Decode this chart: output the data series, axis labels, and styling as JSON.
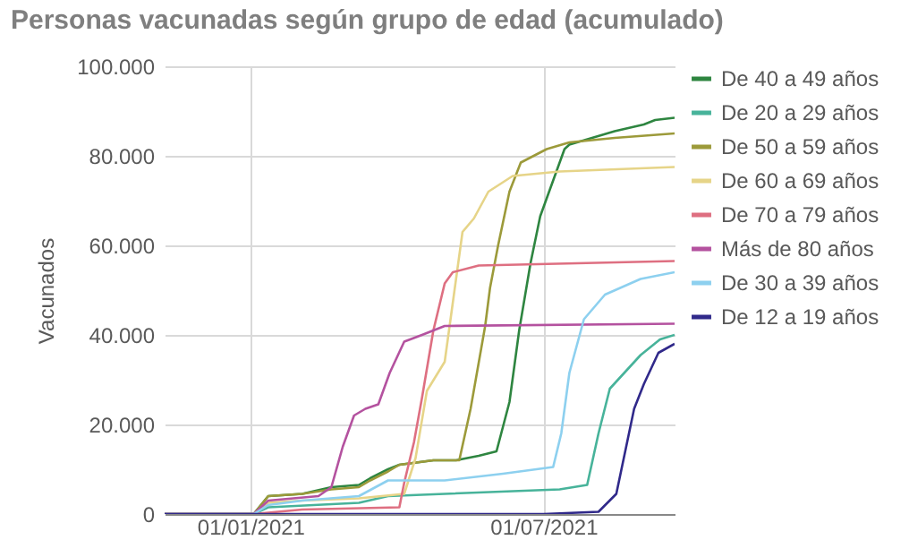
{
  "chart_data": {
    "type": "line",
    "title": "Personas vacunadas según grupo de edad (acumulado)",
    "ylabel": "Vacunados",
    "xlim": [
      "2020-11-09",
      "2021-09-20"
    ],
    "xticks": [
      {
        "value": "2021-01-01",
        "label": "01/01/2021"
      },
      {
        "value": "2021-07-01",
        "label": "01/07/2021"
      }
    ],
    "ylim": [
      0,
      100000
    ],
    "yticks": [
      0,
      {
        "value": 20000,
        "label": "20.000"
      },
      {
        "value": 40000,
        "label": "40.000"
      },
      {
        "value": 60000,
        "label": "60.000"
      },
      {
        "value": 80000,
        "label": "80.000"
      },
      {
        "value": 100000,
        "label": "100.000"
      }
    ],
    "grid": true,
    "legend": "right",
    "series": [
      {
        "name": "De 40 a 49 años",
        "color": "#2e8540",
        "x": [
          "2020-11-09",
          "2021-01-03",
          "2021-01-12",
          "2021-02-02",
          "2021-02-20",
          "2021-03-09",
          "2021-03-16",
          "2021-03-27",
          "2021-04-03",
          "2021-04-24",
          "2021-05-08",
          "2021-05-22",
          "2021-06-02",
          "2021-06-10",
          "2021-06-16",
          "2021-06-23",
          "2021-06-29",
          "2021-07-07",
          "2021-07-14",
          "2021-07-17",
          "2021-07-31",
          "2021-08-14",
          "2021-09-01",
          "2021-09-08",
          "2021-09-20"
        ],
        "values": [
          0,
          0,
          4000,
          4500,
          6000,
          6500,
          8000,
          10000,
          11000,
          12000,
          12000,
          13000,
          14000,
          25000,
          41000,
          56000,
          66500,
          74500,
          81500,
          82500,
          84000,
          85500,
          87000,
          88000,
          88500
        ]
      },
      {
        "name": "De 20 a 29 años",
        "color": "#47b39a",
        "x": [
          "2020-11-09",
          "2021-01-03",
          "2021-01-12",
          "2021-03-09",
          "2021-03-27",
          "2021-05-01",
          "2021-07-11",
          "2021-07-28",
          "2021-08-04",
          "2021-08-11",
          "2021-08-30",
          "2021-09-11",
          "2021-09-20"
        ],
        "values": [
          0,
          0,
          1500,
          2500,
          4000,
          4500,
          5500,
          6500,
          18000,
          28000,
          35500,
          39000,
          40000
        ]
      },
      {
        "name": "De 50 a 59 años",
        "color": "#9c9a3a",
        "x": [
          "2020-11-09",
          "2021-01-03",
          "2021-01-12",
          "2021-02-02",
          "2021-02-20",
          "2021-03-09",
          "2021-03-16",
          "2021-03-27",
          "2021-04-03",
          "2021-04-24",
          "2021-05-10",
          "2021-05-17",
          "2021-05-26",
          "2021-05-29",
          "2021-06-03",
          "2021-06-10",
          "2021-06-17",
          "2021-07-03",
          "2021-07-17",
          "2021-08-14",
          "2021-09-20"
        ],
        "values": [
          0,
          0,
          4000,
          4500,
          5500,
          6000,
          7500,
          9500,
          11000,
          12000,
          12000,
          23500,
          42000,
          50500,
          60000,
          72000,
          78500,
          81500,
          83000,
          84000,
          85000
        ]
      },
      {
        "name": "De 60 a 69 años",
        "color": "#e6d488",
        "x": [
          "2020-11-09",
          "2021-01-03",
          "2021-01-12",
          "2021-02-02",
          "2021-03-09",
          "2021-04-06",
          "2021-04-13",
          "2021-04-20",
          "2021-05-01",
          "2021-05-12",
          "2021-05-19",
          "2021-05-28",
          "2021-06-12",
          "2021-07-11",
          "2021-09-20"
        ],
        "values": [
          0,
          0,
          2500,
          3000,
          3500,
          4500,
          12500,
          27500,
          34000,
          63000,
          66000,
          72000,
          75500,
          76500,
          77500
        ]
      },
      {
        "name": "De 70 a 79 años",
        "color": "#de6f81",
        "x": [
          "2020-11-09",
          "2021-01-03",
          "2021-02-02",
          "2021-04-03",
          "2021-04-06",
          "2021-04-12",
          "2021-04-17",
          "2021-04-24",
          "2021-05-01",
          "2021-05-06",
          "2021-05-22",
          "2021-09-20"
        ],
        "values": [
          0,
          0,
          1000,
          1500,
          7000,
          16000,
          26000,
          41000,
          51500,
          54000,
          55500,
          56500
        ]
      },
      {
        "name": "Más de 80 años",
        "color": "#b4529f",
        "x": [
          "2020-11-09",
          "2021-01-03",
          "2021-01-12",
          "2021-02-12",
          "2021-02-20",
          "2021-02-27",
          "2021-03-06",
          "2021-03-13",
          "2021-03-21",
          "2021-03-28",
          "2021-04-06",
          "2021-04-17",
          "2021-05-01",
          "2021-09-20"
        ],
        "values": [
          0,
          0,
          3000,
          4000,
          6000,
          15000,
          22000,
          23500,
          24500,
          31500,
          38500,
          40000,
          42000,
          42500
        ]
      },
      {
        "name": "De 30 a 39 años",
        "color": "#8dd0ef",
        "x": [
          "2020-11-09",
          "2021-01-03",
          "2021-01-12",
          "2021-02-02",
          "2021-03-09",
          "2021-03-27",
          "2021-05-01",
          "2021-06-06",
          "2021-07-07",
          "2021-07-12",
          "2021-07-17",
          "2021-07-26",
          "2021-08-08",
          "2021-08-30",
          "2021-09-20"
        ],
        "values": [
          0,
          0,
          2000,
          3000,
          4000,
          7500,
          7500,
          9000,
          10500,
          18000,
          31500,
          43500,
          49000,
          52500,
          54000
        ]
      },
      {
        "name": "De 12 a 19 años",
        "color": "#30298a",
        "x": [
          "2020-11-09",
          "2021-07-01",
          "2021-08-04",
          "2021-08-15",
          "2021-08-26",
          "2021-09-01",
          "2021-09-10",
          "2021-09-20"
        ],
        "values": [
          0,
          0,
          500,
          4500,
          23500,
          29000,
          36000,
          38000
        ]
      }
    ]
  }
}
